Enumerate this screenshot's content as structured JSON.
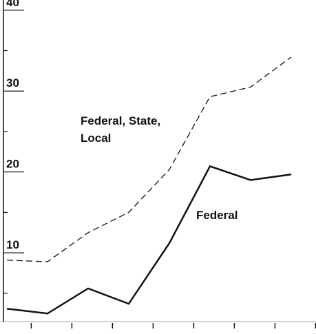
{
  "chart_data": {
    "type": "line",
    "categories": [
      null,
      null,
      null,
      null,
      null,
      null,
      null,
      null
    ],
    "series": [
      {
        "name_lines": [
          "Federal, State,",
          "Local"
        ],
        "color": "#111111",
        "dash": true,
        "values": [
          9.1,
          8.9,
          12.5,
          15.0,
          20.3,
          29.3,
          30.5,
          34.2
        ]
      },
      {
        "name": "Federal",
        "color": "#111111",
        "dash": false,
        "values": [
          3.1,
          2.5,
          5.6,
          3.7,
          11.2,
          20.7,
          19.0,
          19.7
        ]
      }
    ],
    "ylim": [
      1.5,
      41
    ],
    "yticks": [
      10,
      20,
      30,
      40
    ],
    "minor_yticks": [
      5,
      15,
      25,
      35
    ]
  }
}
